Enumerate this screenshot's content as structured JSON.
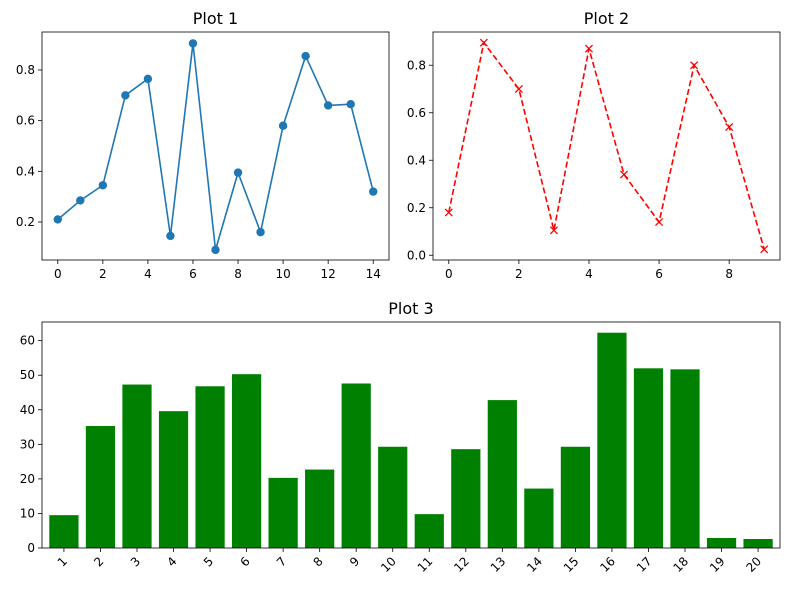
{
  "chart_data": [
    {
      "type": "line",
      "title": "Plot 1",
      "xlabel": "",
      "ylabel": "",
      "x": [
        0,
        1,
        2,
        3,
        4,
        5,
        6,
        7,
        8,
        9,
        10,
        11,
        12,
        13,
        14
      ],
      "series": [
        {
          "values": [
            0.21,
            0.285,
            0.345,
            0.7,
            0.765,
            0.145,
            0.905,
            0.09,
            0.395,
            0.16,
            0.58,
            0.855,
            0.66,
            0.665,
            0.32
          ],
          "color": "#1f77b4",
          "marker": "circle",
          "linestyle": "solid"
        }
      ],
      "xlim": [
        -0.7,
        14.7
      ],
      "ylim": [
        0.05,
        0.95
      ],
      "xticks": [
        0,
        2,
        4,
        6,
        8,
        10,
        12,
        14
      ],
      "xtick_labels": [
        "0",
        "2",
        "4",
        "6",
        "8",
        "10",
        "12",
        "14"
      ],
      "yticks": [
        0.2,
        0.4,
        0.6,
        0.8
      ],
      "ytick_labels": [
        "0.2",
        "0.4",
        "0.6",
        "0.8"
      ],
      "grid": false
    },
    {
      "type": "line",
      "title": "Plot 2",
      "xlabel": "",
      "ylabel": "",
      "x": [
        0,
        1,
        2,
        3,
        4,
        5,
        6,
        7,
        8,
        9
      ],
      "series": [
        {
          "values": [
            0.18,
            0.895,
            0.7,
            0.105,
            0.87,
            0.34,
            0.14,
            0.8,
            0.54,
            0.025
          ],
          "color": "#ff0000",
          "marker": "x",
          "linestyle": "dashed"
        }
      ],
      "xlim": [
        -0.45,
        9.45
      ],
      "ylim": [
        -0.02,
        0.94
      ],
      "xticks": [
        0,
        2,
        4,
        6,
        8
      ],
      "xtick_labels": [
        "0",
        "2",
        "4",
        "6",
        "8"
      ],
      "yticks": [
        0.0,
        0.2,
        0.4,
        0.6,
        0.8
      ],
      "ytick_labels": [
        "0.0",
        "0.2",
        "0.4",
        "0.6",
        "0.8"
      ],
      "grid": false
    },
    {
      "type": "bar",
      "title": "Plot 3",
      "xlabel": "",
      "ylabel": "",
      "categories": [
        "1",
        "2",
        "3",
        "4",
        "5",
        "6",
        "7",
        "8",
        "9",
        "10",
        "11",
        "12",
        "13",
        "14",
        "15",
        "16",
        "17",
        "18",
        "19",
        "20"
      ],
      "series": [
        {
          "values": [
            9.5,
            35.3,
            47.3,
            39.6,
            46.8,
            50.3,
            20.3,
            22.7,
            47.6,
            29.3,
            9.8,
            28.6,
            42.8,
            17.2,
            29.3,
            62.3,
            52.0,
            51.7,
            2.9,
            2.6
          ],
          "color": "#008000"
        }
      ],
      "ylim": [
        0,
        65.4
      ],
      "yticks": [
        0,
        10,
        20,
        30,
        40,
        50,
        60
      ],
      "ytick_labels": [
        "0",
        "10",
        "20",
        "30",
        "40",
        "50",
        "60"
      ],
      "xtick_rotation": 45,
      "grid": false
    }
  ]
}
